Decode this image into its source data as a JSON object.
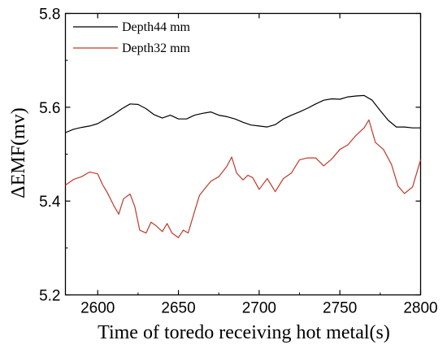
{
  "chart_data": {
    "type": "line",
    "title": "",
    "xlabel": "Time of toredo receiving hot metal(s)",
    "ylabel": "ΔEMF(mv)",
    "xlim": [
      2580,
      2800
    ],
    "ylim": [
      5.2,
      5.8
    ],
    "xticks": [
      2600,
      2650,
      2700,
      2750,
      2800
    ],
    "xtick_labels": [
      "2600",
      "2650",
      "2700",
      "2750",
      "2800"
    ],
    "yticks": [
      5.2,
      5.4,
      5.6,
      5.8
    ],
    "ytick_labels": [
      "5.2",
      "5.4",
      "5.6",
      "5.8"
    ],
    "grid": false,
    "legend_position": "top-left",
    "series": [
      {
        "name": "Depth44 mm",
        "color": "#000000",
        "x": [
          2580,
          2585,
          2590,
          2595,
          2600,
          2605,
          2610,
          2615,
          2620,
          2625,
          2630,
          2635,
          2640,
          2645,
          2650,
          2655,
          2660,
          2665,
          2670,
          2675,
          2680,
          2685,
          2690,
          2695,
          2700,
          2705,
          2710,
          2715,
          2720,
          2725,
          2730,
          2735,
          2740,
          2745,
          2750,
          2755,
          2760,
          2765,
          2770,
          2775,
          2780,
          2785,
          2790,
          2795,
          2800
        ],
        "y": [
          5.546,
          5.553,
          5.557,
          5.56,
          5.565,
          5.575,
          5.585,
          5.597,
          5.607,
          5.606,
          5.597,
          5.584,
          5.577,
          5.583,
          5.575,
          5.575,
          5.583,
          5.587,
          5.59,
          5.583,
          5.58,
          5.575,
          5.568,
          5.562,
          5.56,
          5.558,
          5.563,
          5.575,
          5.583,
          5.59,
          5.598,
          5.607,
          5.615,
          5.618,
          5.617,
          5.622,
          5.624,
          5.625,
          5.615,
          5.593,
          5.572,
          5.558,
          5.558,
          5.556,
          5.556
        ]
      },
      {
        "name": "Depth32 mm",
        "color": "#c0392b",
        "x": [
          2580,
          2585,
          2590,
          2595,
          2600,
          2603,
          2606,
          2610,
          2613,
          2616,
          2620,
          2623,
          2626,
          2630,
          2633,
          2636,
          2640,
          2643,
          2646,
          2650,
          2653,
          2656,
          2660,
          2663,
          2666,
          2670,
          2675,
          2680,
          2683,
          2686,
          2690,
          2693,
          2696,
          2700,
          2705,
          2710,
          2715,
          2720,
          2725,
          2730,
          2735,
          2740,
          2745,
          2750,
          2755,
          2760,
          2765,
          2768,
          2772,
          2777,
          2782,
          2786,
          2790,
          2795,
          2800
        ],
        "y": [
          5.434,
          5.446,
          5.452,
          5.462,
          5.458,
          5.435,
          5.418,
          5.39,
          5.372,
          5.405,
          5.415,
          5.388,
          5.338,
          5.332,
          5.355,
          5.348,
          5.335,
          5.352,
          5.332,
          5.322,
          5.338,
          5.332,
          5.378,
          5.412,
          5.425,
          5.442,
          5.452,
          5.474,
          5.494,
          5.46,
          5.445,
          5.455,
          5.45,
          5.425,
          5.448,
          5.42,
          5.448,
          5.46,
          5.488,
          5.492,
          5.492,
          5.475,
          5.49,
          5.51,
          5.52,
          5.54,
          5.556,
          5.573,
          5.525,
          5.51,
          5.478,
          5.432,
          5.416,
          5.43,
          5.488
        ]
      }
    ]
  }
}
